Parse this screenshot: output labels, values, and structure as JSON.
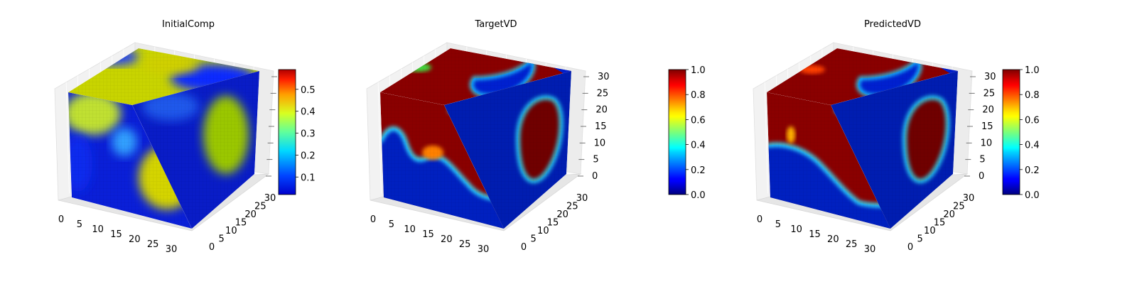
{
  "chart_data": [
    {
      "type": "heatmap",
      "subtype": "3d-voxel-cube",
      "title": "InitialComp",
      "axes": {
        "x": {
          "range": [
            0,
            32
          ],
          "ticks": [
            "0",
            "5",
            "10",
            "15",
            "20",
            "25",
            "30"
          ]
        },
        "y": {
          "range": [
            0,
            32
          ],
          "ticks": [
            "0",
            "5",
            "10",
            "15",
            "20",
            "25",
            "30"
          ]
        },
        "z": {
          "range": [
            0,
            32
          ],
          "ticks": []
        }
      },
      "colorbar": {
        "colormap": "jet",
        "range": [
          0.02,
          0.59
        ],
        "ticks": [
          "0.1",
          "0.2",
          "0.3",
          "0.4",
          "0.5"
        ],
        "tick_values": [
          0.1,
          0.2,
          0.3,
          0.4,
          0.5
        ]
      }
    },
    {
      "type": "heatmap",
      "subtype": "3d-voxel-cube",
      "title": "TargetVD",
      "axes": {
        "x": {
          "range": [
            0,
            32
          ],
          "ticks": [
            "0",
            "5",
            "10",
            "15",
            "20",
            "25",
            "30"
          ]
        },
        "y": {
          "range": [
            0,
            32
          ],
          "ticks": [
            "0",
            "5",
            "10",
            "15",
            "20",
            "25",
            "30"
          ]
        },
        "z": {
          "range": [
            0,
            32
          ],
          "ticks": [
            "0",
            "5",
            "10",
            "15",
            "20",
            "25",
            "30"
          ]
        }
      },
      "colorbar": {
        "colormap": "jet",
        "range": [
          0.0,
          1.0
        ],
        "ticks": [
          "0.0",
          "0.2",
          "0.4",
          "0.6",
          "0.8",
          "1.0"
        ],
        "tick_values": [
          0.0,
          0.2,
          0.4,
          0.6,
          0.8,
          1.0
        ]
      }
    },
    {
      "type": "heatmap",
      "subtype": "3d-voxel-cube",
      "title": "PredictedVD",
      "axes": {
        "x": {
          "range": [
            0,
            32
          ],
          "ticks": [
            "0",
            "5",
            "10",
            "15",
            "20",
            "25",
            "30"
          ]
        },
        "y": {
          "range": [
            0,
            32
          ],
          "ticks": [
            "0",
            "5",
            "10",
            "15",
            "20",
            "25",
            "30"
          ]
        },
        "z": {
          "range": [
            0,
            32
          ],
          "ticks": [
            "0",
            "5",
            "10",
            "15",
            "20",
            "25",
            "30"
          ]
        }
      },
      "colorbar": {
        "colormap": "jet",
        "range": [
          0.0,
          1.0
        ],
        "ticks": [
          "0.0",
          "0.2",
          "0.4",
          "0.6",
          "0.8",
          "1.0"
        ],
        "tick_values": [
          0.0,
          0.2,
          0.4,
          0.6,
          0.8,
          1.0
        ]
      }
    }
  ]
}
